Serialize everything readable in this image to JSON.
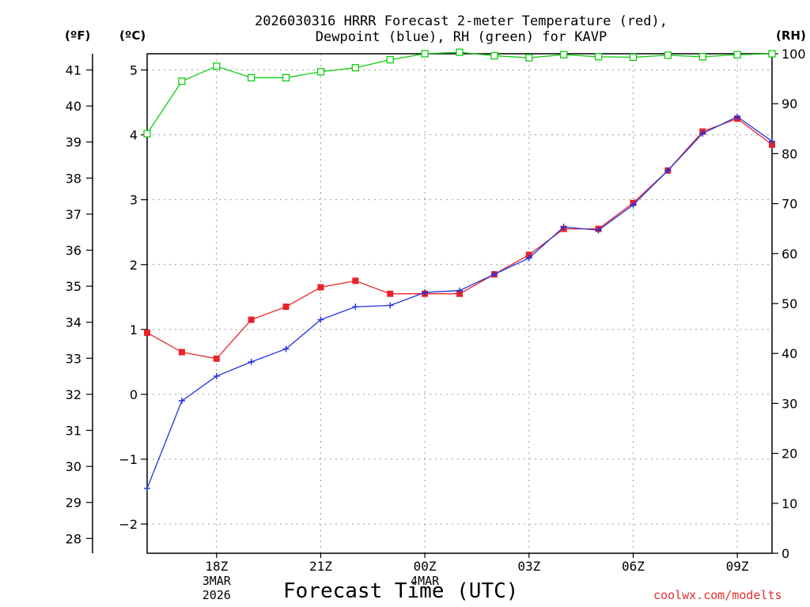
{
  "title": {
    "line1": "2026030316 HRRR Forecast 2-meter Temperature (red),",
    "line2": "Dewpoint (blue), RH (green) for KAVP"
  },
  "units": {
    "fahrenheit": "(ºF)",
    "celsius": "(ºC)",
    "rh": "(RH)"
  },
  "xaxis_label": "Forecast Time (UTC)",
  "credit": "coolwx.com/modelts",
  "colors": {
    "temperature": "#e8232a",
    "dewpoint": "#2233dd",
    "rh": "#11cc11",
    "grid": "#999999"
  },
  "chart_data": {
    "type": "line",
    "x_hours": [
      16,
      17,
      18,
      19,
      20,
      21,
      22,
      23,
      24,
      25,
      26,
      27,
      28,
      29,
      30,
      31,
      32,
      33,
      34
    ],
    "xlim": [
      16,
      34
    ],
    "xticks": [
      {
        "hour": 18,
        "label": "18Z",
        "sub1": "3MAR",
        "sub2": "2026"
      },
      {
        "hour": 21,
        "label": "21Z",
        "sub1": "",
        "sub2": ""
      },
      {
        "hour": 24,
        "label": "00Z",
        "sub1": "4MAR",
        "sub2": ""
      },
      {
        "hour": 27,
        "label": "03Z",
        "sub1": "",
        "sub2": ""
      },
      {
        "hour": 30,
        "label": "06Z",
        "sub1": "",
        "sub2": ""
      },
      {
        "hour": 33,
        "label": "09Z",
        "sub1": "",
        "sub2": ""
      }
    ],
    "celsius_axis": {
      "ylim": [
        -2.45,
        5.25
      ],
      "ticks": [
        -2,
        -1,
        0,
        1,
        2,
        3,
        4,
        5
      ]
    },
    "fahrenheit_axis": {
      "ticks": [
        28,
        29,
        30,
        31,
        32,
        33,
        34,
        35,
        36,
        37,
        38,
        39,
        40,
        41
      ]
    },
    "rh_axis": {
      "ylim": [
        0,
        100
      ],
      "ticks": [
        0,
        10,
        20,
        30,
        40,
        50,
        60,
        70,
        80,
        90,
        100
      ]
    },
    "series": [
      {
        "name": "Temperature",
        "units": "C",
        "marker": "filled-square",
        "values": [
          0.95,
          0.65,
          0.55,
          1.15,
          1.35,
          1.65,
          1.75,
          1.55,
          1.55,
          1.55,
          1.85,
          2.15,
          2.55,
          2.55,
          2.95,
          3.45,
          4.05,
          4.25,
          3.85
        ]
      },
      {
        "name": "Dewpoint",
        "units": "C",
        "marker": "plus",
        "values": [
          -1.45,
          -0.1,
          0.28,
          0.5,
          0.7,
          1.15,
          1.35,
          1.37,
          1.57,
          1.6,
          1.85,
          2.1,
          2.58,
          2.53,
          2.92,
          3.45,
          4.02,
          4.28,
          3.9
        ]
      },
      {
        "name": "RH",
        "units": "%",
        "marker": "open-square",
        "values": [
          84,
          94.5,
          97.5,
          95.2,
          95.2,
          96.4,
          97.2,
          98.8,
          100,
          100.3,
          99.6,
          99.2,
          99.8,
          99.4,
          99.3,
          99.7,
          99.4,
          99.8,
          100
        ]
      }
    ]
  }
}
